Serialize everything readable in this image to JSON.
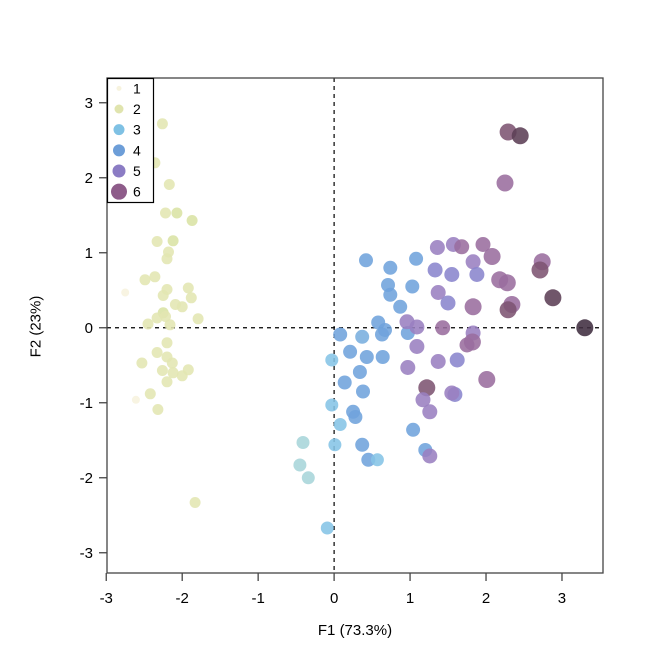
{
  "figure": {
    "background": "#ffffff",
    "box_color": "#454545",
    "tick_color": "#454545",
    "text_color": "#000000"
  },
  "chart_data": {
    "type": "scatter",
    "title": "",
    "xlabel": "F1 (73.3%)",
    "ylabel": "F2 (23%)",
    "xlim": [
      -2.99,
      3.54
    ],
    "ylim": [
      -3.27,
      3.33
    ],
    "xticks": [
      "-3",
      "-2",
      "-1",
      "0",
      "1",
      "2",
      "3"
    ],
    "yticks": [
      "-3",
      "-2",
      "-1",
      "0",
      "1",
      "2",
      "3"
    ],
    "grid": false,
    "point_alpha": 0.88,
    "reference_lines": [
      {
        "axis": "vertical",
        "value": 0,
        "style": "dashed",
        "color": "#000000"
      },
      {
        "axis": "horizontal",
        "value": 0,
        "style": "dashed",
        "color": "#000000"
      }
    ],
    "legend": {
      "position": "top-left",
      "border_color": "#000000",
      "background": "#ffffff",
      "items": [
        {
          "label": "1",
          "color": "#f7f3de",
          "radius": 2.5
        },
        {
          "label": "2",
          "color": "#e0e4ae",
          "radius": 4.5
        },
        {
          "label": "3",
          "color": "#7fc1e4",
          "radius": 5.5
        },
        {
          "label": "4",
          "color": "#6d9ed8",
          "radius": 6
        },
        {
          "label": "5",
          "color": "#8b7cc4",
          "radius": 6.5
        },
        {
          "label": "6",
          "color": "#8e5c8a",
          "radius": 8
        }
      ]
    },
    "palette": [
      "#f7f3de",
      "#e3e6b2",
      "#d9e3a4",
      "#a7d5da",
      "#85c4e6",
      "#6fa3dc",
      "#79aede",
      "#8a85cd",
      "#9a7fc0",
      "#9a6d9e",
      "#7d5472",
      "#5c3f55",
      "#402d40"
    ],
    "group_radius": {
      "1": 4,
      "2": 5.5,
      "3": 6.5,
      "4": 7,
      "5": 7.5,
      "6": 8.5
    },
    "points_format": [
      "x",
      "y",
      "palette_index",
      "group"
    ],
    "points": [
      [
        -2.26,
        2.72,
        1,
        2
      ],
      [
        -2.36,
        2.2,
        1,
        2
      ],
      [
        -2.17,
        1.91,
        1,
        2
      ],
      [
        -2.22,
        1.53,
        1,
        2
      ],
      [
        -2.07,
        1.53,
        2,
        2
      ],
      [
        -1.87,
        1.43,
        2,
        2
      ],
      [
        -2.33,
        1.15,
        1,
        2
      ],
      [
        -2.12,
        1.16,
        2,
        2
      ],
      [
        -2.18,
        1.01,
        1,
        2
      ],
      [
        -2.2,
        0.92,
        1,
        2
      ],
      [
        -2.49,
        0.64,
        1,
        2
      ],
      [
        -2.36,
        0.68,
        1,
        2
      ],
      [
        -2.75,
        0.47,
        0,
        1
      ],
      [
        -2.2,
        0.51,
        1,
        2
      ],
      [
        -2.25,
        0.43,
        1,
        2
      ],
      [
        -1.92,
        0.53,
        1,
        2
      ],
      [
        -1.88,
        0.4,
        1,
        2
      ],
      [
        -2.09,
        0.31,
        1,
        2
      ],
      [
        -2.0,
        0.28,
        1,
        2
      ],
      [
        -2.25,
        0.2,
        2,
        2
      ],
      [
        -2.22,
        0.15,
        1,
        2
      ],
      [
        -2.33,
        0.13,
        1,
        2
      ],
      [
        -2.16,
        0.04,
        1,
        2
      ],
      [
        -2.45,
        0.05,
        1,
        2
      ],
      [
        -1.79,
        0.12,
        1,
        2
      ],
      [
        -2.2,
        -0.2,
        1,
        2
      ],
      [
        -2.33,
        -0.33,
        1,
        2
      ],
      [
        -2.2,
        -0.39,
        1,
        2
      ],
      [
        -2.13,
        -0.47,
        1,
        2
      ],
      [
        -2.53,
        -0.47,
        1,
        2
      ],
      [
        -2.26,
        -0.57,
        1,
        2
      ],
      [
        -2.12,
        -0.6,
        1,
        2
      ],
      [
        -2.0,
        -0.64,
        1,
        2
      ],
      [
        -1.92,
        -0.56,
        1,
        2
      ],
      [
        -2.2,
        -0.72,
        1,
        2
      ],
      [
        -2.42,
        -0.88,
        1,
        2
      ],
      [
        -2.61,
        -0.96,
        0,
        1
      ],
      [
        -2.32,
        -1.09,
        1,
        2
      ],
      [
        -1.83,
        -2.33,
        1,
        2
      ],
      [
        0.42,
        0.9,
        5,
        4
      ],
      [
        0.74,
        0.8,
        5,
        4
      ],
      [
        1.08,
        0.92,
        5,
        4
      ],
      [
        0.71,
        0.57,
        5,
        4
      ],
      [
        1.03,
        0.55,
        5,
        4
      ],
      [
        0.74,
        0.44,
        5,
        4
      ],
      [
        0.87,
        0.28,
        5,
        4
      ],
      [
        0.58,
        0.07,
        5,
        4
      ],
      [
        0.67,
        -0.03,
        5,
        4
      ],
      [
        0.08,
        -0.09,
        5,
        4
      ],
      [
        0.37,
        -0.12,
        6,
        4
      ],
      [
        0.63,
        -0.09,
        5,
        4
      ],
      [
        0.97,
        -0.07,
        5,
        4
      ],
      [
        -0.03,
        -0.43,
        4,
        3
      ],
      [
        0.21,
        -0.32,
        5,
        4
      ],
      [
        0.43,
        -0.39,
        5,
        4
      ],
      [
        0.64,
        -0.39,
        5,
        4
      ],
      [
        0.34,
        -0.59,
        5,
        4
      ],
      [
        0.14,
        -0.73,
        5,
        4
      ],
      [
        0.38,
        -0.85,
        5,
        4
      ],
      [
        -0.03,
        -1.03,
        4,
        3
      ],
      [
        0.25,
        -1.12,
        5,
        4
      ],
      [
        0.08,
        -1.29,
        4,
        3
      ],
      [
        0.28,
        -1.19,
        5,
        4
      ],
      [
        0.01,
        -1.56,
        4,
        3
      ],
      [
        0.37,
        -1.56,
        5,
        4
      ],
      [
        1.04,
        -1.36,
        5,
        4
      ],
      [
        1.2,
        -1.63,
        5,
        4
      ],
      [
        0.45,
        -1.76,
        5,
        4
      ],
      [
        0.57,
        -1.76,
        4,
        3
      ],
      [
        -0.41,
        -1.53,
        3,
        3
      ],
      [
        -0.45,
        -1.83,
        3,
        3
      ],
      [
        -0.34,
        -2.0,
        3,
        3
      ],
      [
        -0.09,
        -2.67,
        4,
        3
      ],
      [
        1.36,
        1.07,
        8,
        5
      ],
      [
        1.57,
        1.11,
        8,
        5
      ],
      [
        1.68,
        1.08,
        9,
        5
      ],
      [
        1.96,
        1.11,
        9,
        5
      ],
      [
        2.08,
        0.95,
        9,
        6
      ],
      [
        1.83,
        0.88,
        8,
        5
      ],
      [
        1.33,
        0.77,
        7,
        5
      ],
      [
        1.55,
        0.71,
        7,
        5
      ],
      [
        1.88,
        0.71,
        7,
        5
      ],
      [
        2.18,
        0.64,
        9,
        6
      ],
      [
        2.28,
        0.6,
        9,
        6
      ],
      [
        2.74,
        0.88,
        9,
        6
      ],
      [
        2.71,
        0.77,
        10,
        6
      ],
      [
        2.88,
        0.4,
        11,
        6
      ],
      [
        1.37,
        0.47,
        8,
        5
      ],
      [
        1.5,
        0.33,
        7,
        5
      ],
      [
        1.83,
        0.28,
        9,
        6
      ],
      [
        2.34,
        0.31,
        9,
        6
      ],
      [
        2.29,
        0.24,
        10,
        6
      ],
      [
        1.43,
        0.0,
        9,
        5
      ],
      [
        1.83,
        -0.07,
        8,
        5
      ],
      [
        3.3,
        0.0,
        12,
        6
      ],
      [
        2.29,
        2.61,
        10,
        6
      ],
      [
        2.45,
        2.56,
        11,
        6
      ],
      [
        2.25,
        1.93,
        9,
        6
      ],
      [
        1.82,
        -0.19,
        9,
        6
      ],
      [
        1.62,
        -0.43,
        7,
        5
      ],
      [
        2.01,
        -0.69,
        9,
        6
      ],
      [
        1.59,
        -0.89,
        7,
        5
      ],
      [
        1.09,
        0.01,
        8,
        5
      ],
      [
        0.96,
        0.08,
        8,
        5
      ],
      [
        1.09,
        -0.25,
        8,
        5
      ],
      [
        1.37,
        -0.45,
        8,
        5
      ],
      [
        1.75,
        -0.23,
        9,
        5
      ],
      [
        0.97,
        -0.53,
        8,
        5
      ],
      [
        1.22,
        -0.8,
        10,
        6
      ],
      [
        1.17,
        -0.96,
        8,
        5
      ],
      [
        1.55,
        -0.87,
        8,
        5
      ],
      [
        1.26,
        -1.12,
        8,
        5
      ],
      [
        1.26,
        -1.71,
        8,
        5
      ]
    ]
  }
}
